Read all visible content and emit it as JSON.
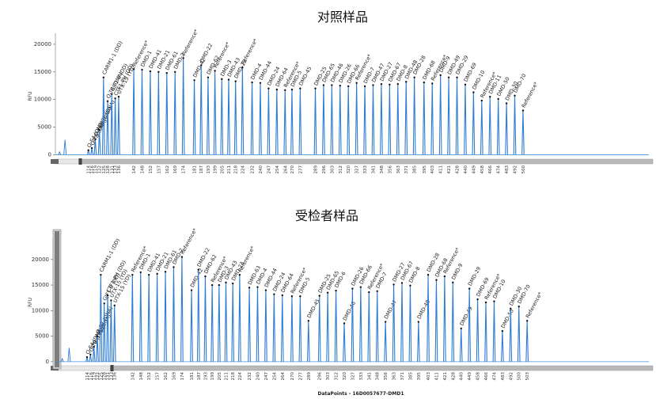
{
  "chart_data": [
    {
      "type": "line",
      "title": "对照样品",
      "ylabel": "RFU",
      "yticks": [
        0,
        5000,
        10000,
        15000,
        20000
      ],
      "ylim": [
        -800,
        22000
      ],
      "xlim": [
        90,
        510
      ],
      "baseline_start": 107,
      "small_peaks": [
        {
          "x": 93,
          "height": 500
        },
        {
          "x": 97,
          "height": 2700
        }
      ],
      "peaks": [
        {
          "x": 114,
          "height": 800,
          "label": "Q-S4 (DNA)",
          "size": "114"
        },
        {
          "x": 116.5,
          "height": 1200,
          "label": "Q-T8 (DNA)",
          "size": "116"
        },
        {
          "x": 119,
          "height": 2800,
          "label": "Q-X18 (DNA)",
          "size": "119"
        },
        {
          "x": 122,
          "height": 4500,
          "label": "Q-92 (DNA)",
          "size": "122"
        },
        {
          "x": 125,
          "height": 14000,
          "label": "CARM1-1 (DD)",
          "size": "125"
        },
        {
          "x": 128,
          "height": 9700,
          "label": "Q-T8 (DNA)",
          "size": "128"
        },
        {
          "x": 131,
          "height": 11000,
          "label": "GJF1-8 (DD)",
          "size": "131"
        },
        {
          "x": 133.5,
          "height": 10200,
          "label": "CTF1-PH (DD)",
          "size": "133"
        },
        {
          "x": 136,
          "height": 10500,
          "label": "UTX-15 (YD)",
          "size": "136"
        },
        {
          "x": 147,
          "height": 15500,
          "label": "Reference*",
          "size": "142"
        },
        {
          "x": 153,
          "height": 15400,
          "label": "DMD-1",
          "size": "148"
        },
        {
          "x": 159,
          "height": 15100,
          "label": "DMD-41",
          "size": "152"
        },
        {
          "x": 165,
          "height": 15000,
          "label": "DMD-21",
          "size": "157"
        },
        {
          "x": 171,
          "height": 14800,
          "label": "DMD-61",
          "size": "162"
        },
        {
          "x": 177,
          "height": 15000,
          "label": "DMD-2",
          "size": "169"
        },
        {
          "x": 183,
          "height": 17500,
          "label": "Reference*",
          "size": "174"
        },
        {
          "x": 191,
          "height": 13500,
          "label": "DMD-42",
          "size": "181"
        },
        {
          "x": 196,
          "height": 16200,
          "label": "DMD-22",
          "size": "187"
        },
        {
          "x": 201,
          "height": 14000,
          "label": "DMD-62",
          "size": "193"
        },
        {
          "x": 206,
          "height": 15200,
          "label": "Reference*",
          "size": "199"
        },
        {
          "x": 211,
          "height": 13700,
          "label": "DMD-3",
          "size": "205"
        },
        {
          "x": 216,
          "height": 13600,
          "label": "DMD-43",
          "size": "211"
        },
        {
          "x": 221,
          "height": 13300,
          "label": "DMD-23",
          "size": "218"
        },
        {
          "x": 226,
          "height": 15800,
          "label": "Reference*",
          "size": "224"
        },
        {
          "x": 233,
          "height": 13100,
          "label": "DMD-4",
          "size": "232"
        },
        {
          "x": 239,
          "height": 13000,
          "label": "DMD-44",
          "size": "240"
        },
        {
          "x": 245,
          "height": 12000,
          "label": "DMD-24",
          "size": "247"
        },
        {
          "x": 251,
          "height": 11800,
          "label": "DMD-64",
          "size": "254"
        },
        {
          "x": 257,
          "height": 11700,
          "label": "Reference*",
          "size": "264"
        },
        {
          "x": 262,
          "height": 11800,
          "label": "DMD-5",
          "size": "270"
        },
        {
          "x": 268,
          "height": 12000,
          "label": "DMD-45",
          "size": "277"
        },
        {
          "x": 279,
          "height": 12000,
          "label": "DMD-25",
          "size": "289"
        },
        {
          "x": 285,
          "height": 12600,
          "label": "DMD-65",
          "size": "296"
        },
        {
          "x": 291,
          "height": 12600,
          "label": "DMD-46",
          "size": "303"
        },
        {
          "x": 297,
          "height": 12500,
          "label": "DMD-26",
          "size": "312"
        },
        {
          "x": 303,
          "height": 12400,
          "label": "DMD-66",
          "size": "320"
        },
        {
          "x": 309,
          "height": 13000,
          "label": "Reference*",
          "size": "327"
        },
        {
          "x": 315,
          "height": 12400,
          "label": "DMD-7",
          "size": "333"
        },
        {
          "x": 321,
          "height": 12600,
          "label": "DMD-47",
          "size": "341"
        },
        {
          "x": 327,
          "height": 12800,
          "label": "DMD-27",
          "size": "348"
        },
        {
          "x": 333,
          "height": 12700,
          "label": "DMD-67",
          "size": "356"
        },
        {
          "x": 339,
          "height": 12800,
          "label": "DMD-8",
          "size": "363"
        },
        {
          "x": 345,
          "height": 13200,
          "label": "DMD-48",
          "size": "371"
        },
        {
          "x": 351,
          "height": 14000,
          "label": "DMD-28",
          "size": "385"
        },
        {
          "x": 358,
          "height": 13100,
          "label": "DMD-68",
          "size": "395"
        },
        {
          "x": 364,
          "height": 12900,
          "label": "Reference*",
          "size": "403"
        },
        {
          "x": 370,
          "height": 14400,
          "label": "DMD-9",
          "size": "411"
        },
        {
          "x": 376,
          "height": 14000,
          "label": "DMD-49",
          "size": "421"
        },
        {
          "x": 382,
          "height": 14000,
          "label": "DMD-29",
          "size": "428"
        },
        {
          "x": 388,
          "height": 12700,
          "label": "DMD-69",
          "size": "440"
        },
        {
          "x": 394,
          "height": 11300,
          "label": "DMD-10",
          "size": "449"
        },
        {
          "x": 400,
          "height": 9800,
          "label": "Reference*",
          "size": "458"
        },
        {
          "x": 406,
          "height": 10500,
          "label": "DMD-11",
          "size": "466"
        },
        {
          "x": 412,
          "height": 10100,
          "label": "DMD-50",
          "size": "474"
        },
        {
          "x": 418,
          "height": 9300,
          "label": "DMD-30",
          "size": "483"
        },
        {
          "x": 424,
          "height": 10700,
          "label": "DMD-70",
          "size": "492"
        },
        {
          "x": 430,
          "height": 8000,
          "label": "Reference*",
          "size": "500"
        }
      ]
    },
    {
      "type": "line",
      "title": "受检者样品",
      "ylabel": "RFU",
      "yticks": [
        0,
        5000,
        10000,
        15000,
        20000
      ],
      "ylim": [
        -800,
        24000
      ],
      "xlim": [
        90,
        510
      ],
      "baseline_start": 130,
      "xlabel": "DataPoints - 16D0057677-DMD1",
      "small_peaks": [
        {
          "x": 95,
          "height": 600
        },
        {
          "x": 100,
          "height": 2700
        }
      ],
      "peaks": [
        {
          "x": 113,
          "height": 900,
          "label": "Q-S4 (DNA)",
          "size": "114"
        },
        {
          "x": 115.5,
          "height": 1400,
          "label": "Q-T8 (DNA)",
          "size": "116"
        },
        {
          "x": 118,
          "height": 2900,
          "label": "Q-X18 (DNA)",
          "size": "119"
        },
        {
          "x": 120.5,
          "height": 5000,
          "label": "Q-92 (DNA)",
          "size": "122"
        },
        {
          "x": 123,
          "height": 17000,
          "label": "CARM1-1 (DD)",
          "size": "125"
        },
        {
          "x": 125.5,
          "height": 11400,
          "label": "GJF1-8 (DD)",
          "size": "128"
        },
        {
          "x": 128,
          "height": 13000,
          "label": "CTF1-PH (DD)",
          "size": "131"
        },
        {
          "x": 130.5,
          "height": 12000,
          "label": "UTX-15 (YD)",
          "size": "133"
        },
        {
          "x": 133,
          "height": 11000,
          "label": "UTX-15 (YD)",
          "size": "136"
        },
        {
          "x": 146,
          "height": 17000,
          "label": "Reference*",
          "size": "142"
        },
        {
          "x": 152,
          "height": 17500,
          "label": "DMD-1",
          "size": "148"
        },
        {
          "x": 158,
          "height": 17000,
          "label": "DMD-41",
          "size": "152"
        },
        {
          "x": 164,
          "height": 17200,
          "label": "DMD-21",
          "size": "157"
        },
        {
          "x": 170,
          "height": 17600,
          "label": "DMD-61",
          "size": "162"
        },
        {
          "x": 176,
          "height": 18500,
          "label": "DMD-2",
          "size": "169"
        },
        {
          "x": 182,
          "height": 20500,
          "label": "Reference*",
          "size": "174"
        },
        {
          "x": 189,
          "height": 14000,
          "label": "DMD-42",
          "size": "181"
        },
        {
          "x": 194,
          "height": 18000,
          "label": "DMD-22",
          "size": "187"
        },
        {
          "x": 199,
          "height": 16700,
          "label": "DMD-62",
          "size": "193"
        },
        {
          "x": 204,
          "height": 15000,
          "label": "Reference*",
          "size": "199"
        },
        {
          "x": 209,
          "height": 15000,
          "label": "DMD-3",
          "size": "205"
        },
        {
          "x": 214,
          "height": 15500,
          "label": "DMD-43",
          "size": "211"
        },
        {
          "x": 219,
          "height": 15300,
          "label": "DMD-23",
          "size": "218"
        },
        {
          "x": 224,
          "height": 17000,
          "label": "Reference*",
          "size": "224"
        },
        {
          "x": 231,
          "height": 14500,
          "label": "DMD-63",
          "size": "232"
        },
        {
          "x": 237,
          "height": 14600,
          "label": "DMD-4",
          "size": "240"
        },
        {
          "x": 243,
          "height": 14000,
          "label": "DMD-44",
          "size": "247"
        },
        {
          "x": 249,
          "height": 13200,
          "label": "DMD-24",
          "size": "254"
        },
        {
          "x": 255,
          "height": 13000,
          "label": "DMD-64",
          "size": "264"
        },
        {
          "x": 262,
          "height": 12800,
          "label": "Reference*",
          "size": "270"
        },
        {
          "x": 268,
          "height": 12800,
          "label": "DMD-5",
          "size": "277"
        },
        {
          "x": 274,
          "height": 8000,
          "label": "DMD-45",
          "size": "289"
        },
        {
          "x": 282,
          "height": 12900,
          "label": "DMD-25",
          "size": "296"
        },
        {
          "x": 288,
          "height": 13500,
          "label": "DMD-65",
          "size": "303"
        },
        {
          "x": 294,
          "height": 13900,
          "label": "DMD-6",
          "size": "312"
        },
        {
          "x": 300,
          "height": 7500,
          "label": "DMD-46",
          "size": "320"
        },
        {
          "x": 306,
          "height": 14300,
          "label": "DMD-26",
          "size": "327"
        },
        {
          "x": 312,
          "height": 14600,
          "label": "DMD-66",
          "size": "333"
        },
        {
          "x": 318,
          "height": 13600,
          "label": "Reference*",
          "size": "341"
        },
        {
          "x": 324,
          "height": 13800,
          "label": "DMD-7",
          "size": "348"
        },
        {
          "x": 330,
          "height": 7800,
          "label": "DMD-47",
          "size": "356"
        },
        {
          "x": 336,
          "height": 15100,
          "label": "DMD-27",
          "size": "363"
        },
        {
          "x": 342,
          "height": 15400,
          "label": "DMD-67",
          "size": "371"
        },
        {
          "x": 348,
          "height": 14900,
          "label": "DMD-8",
          "size": "385"
        },
        {
          "x": 354,
          "height": 7800,
          "label": "DMD-48",
          "size": "395"
        },
        {
          "x": 361,
          "height": 17000,
          "label": "DMD-28",
          "size": "403"
        },
        {
          "x": 367,
          "height": 16000,
          "label": "DMD-68",
          "size": "411"
        },
        {
          "x": 373,
          "height": 16700,
          "label": "Reference*",
          "size": "421"
        },
        {
          "x": 379,
          "height": 15500,
          "label": "DMD-9",
          "size": "428"
        },
        {
          "x": 385,
          "height": 6500,
          "label": "DMD-49",
          "size": "440"
        },
        {
          "x": 391,
          "height": 14300,
          "label": "DMD-29",
          "size": "449"
        },
        {
          "x": 397,
          "height": 12200,
          "label": "DMD-69",
          "size": "458"
        },
        {
          "x": 403,
          "height": 11600,
          "label": "Reference*",
          "size": "466"
        },
        {
          "x": 409,
          "height": 11800,
          "label": "DMD-10",
          "size": "474"
        },
        {
          "x": 415,
          "height": 6000,
          "label": "DMD-50",
          "size": "483"
        },
        {
          "x": 421,
          "height": 10400,
          "label": "DMD-30",
          "size": "492"
        },
        {
          "x": 427,
          "height": 10800,
          "label": "DMD-70",
          "size": "500"
        },
        {
          "x": 433,
          "height": 8000,
          "label": "Reference*",
          "size": "503"
        }
      ]
    }
  ]
}
